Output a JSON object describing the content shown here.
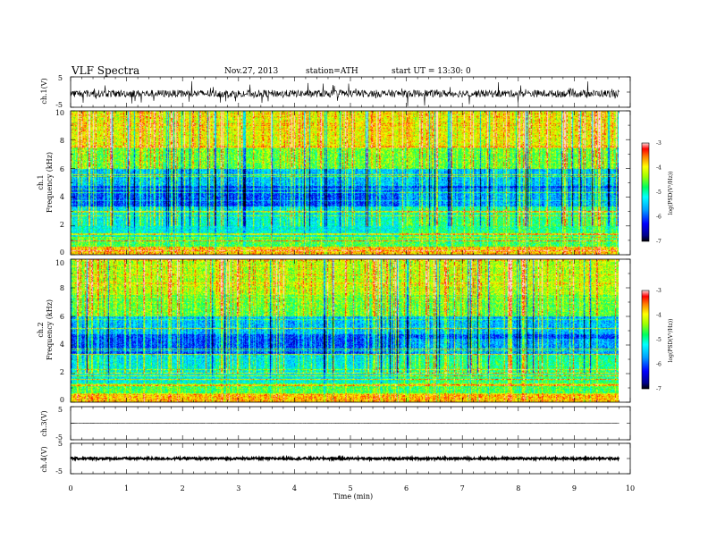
{
  "chart_data": {
    "type": "heatmap",
    "title": "VLF  Spectra",
    "date": "Nov.27, 2013",
    "station": "station=ATH",
    "start": "start  UT  =   13:30: 0",
    "xlabel": "Time  (min)",
    "xlim": [
      0,
      10
    ],
    "xticks": [
      "0",
      "1",
      "2",
      "3",
      "4",
      "5",
      "6",
      "7",
      "8",
      "9",
      "10"
    ],
    "data_end_min": 9.8,
    "panels": [
      {
        "kind": "waveform",
        "ylabel": "ch.1(V)",
        "ylim": [
          -5,
          5
        ],
        "yticks": [
          "5",
          "-5"
        ],
        "baseline": -0.5,
        "noise_amplitude": 1.2
      },
      {
        "kind": "spectrogram",
        "ylabel_channel": "ch.1",
        "ylabel": "Frequency  (kHz)",
        "ylim": [
          0,
          10
        ],
        "yticks": [
          "0",
          "2",
          "4",
          "6",
          "8",
          "10"
        ],
        "colorbar": {
          "label": "log(PSD(V²/Hz))",
          "range": [
            -7,
            -3
          ],
          "ticks": [
            "-3",
            "-4",
            "-5",
            "-6",
            "-7"
          ]
        }
      },
      {
        "kind": "spectrogram",
        "ylabel_channel": "ch.2",
        "ylabel": "Frequency  (kHz)",
        "ylim": [
          0,
          10
        ],
        "yticks": [
          "0",
          "2",
          "4",
          "6",
          "8",
          "10"
        ],
        "colorbar": {
          "label": "log(PSD(V²/Hz))",
          "range": [
            -7,
            -3
          ],
          "ticks": [
            "-3",
            "-4",
            "-5",
            "-6",
            "-7"
          ]
        }
      },
      {
        "kind": "waveform",
        "ylabel": "ch.3(V)",
        "ylim": [
          -5,
          5
        ],
        "yticks": [
          "5",
          "-5"
        ],
        "baseline": 0,
        "noise_amplitude": 0.05
      },
      {
        "kind": "waveform",
        "ylabel": "ch.4(V)",
        "ylim": [
          -5,
          5
        ],
        "yticks": [
          "5",
          "-5"
        ],
        "baseline": 0,
        "noise_amplitude": 0.35
      }
    ]
  }
}
